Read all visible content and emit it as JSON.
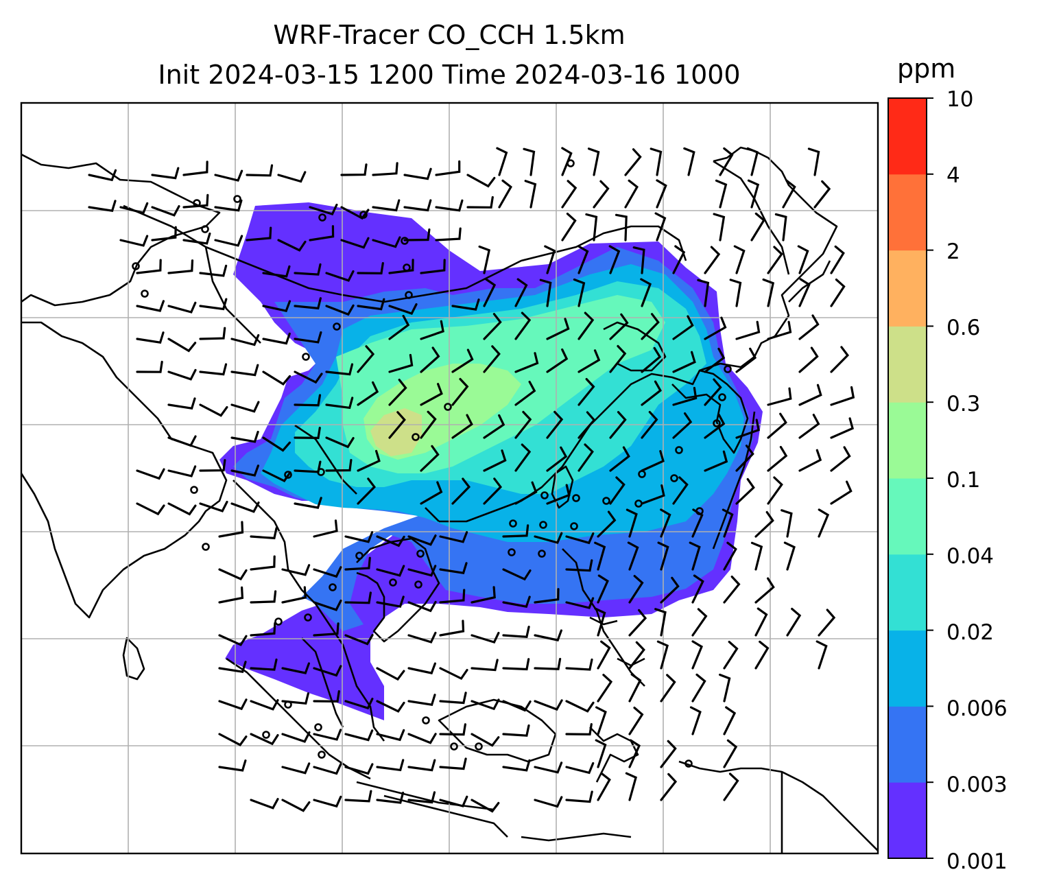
{
  "title": {
    "line1": "WRF-Tracer CO_CCH 1.5km",
    "line2": "Init 2024-03-15 1200 Time 2024-03-16 1000"
  },
  "colorbar": {
    "unit": "ppm",
    "ticks": [
      "0.001",
      "0.003",
      "0.006",
      "0.02",
      "0.04",
      "0.1",
      "0.3",
      "0.6",
      "2",
      "4",
      "10"
    ],
    "colors": [
      "#6430ff",
      "#3574f3",
      "#08b2e8",
      "#33e0d4",
      "#66f8bb",
      "#9afa96",
      "#cde089",
      "#ffb15f",
      "#ff7139",
      "#ff2a17"
    ]
  },
  "map": {
    "projection": "lat-lon grid",
    "gridlines": true,
    "overlays": [
      "coastlines",
      "wind-barbs",
      "calm-circles"
    ]
  }
}
